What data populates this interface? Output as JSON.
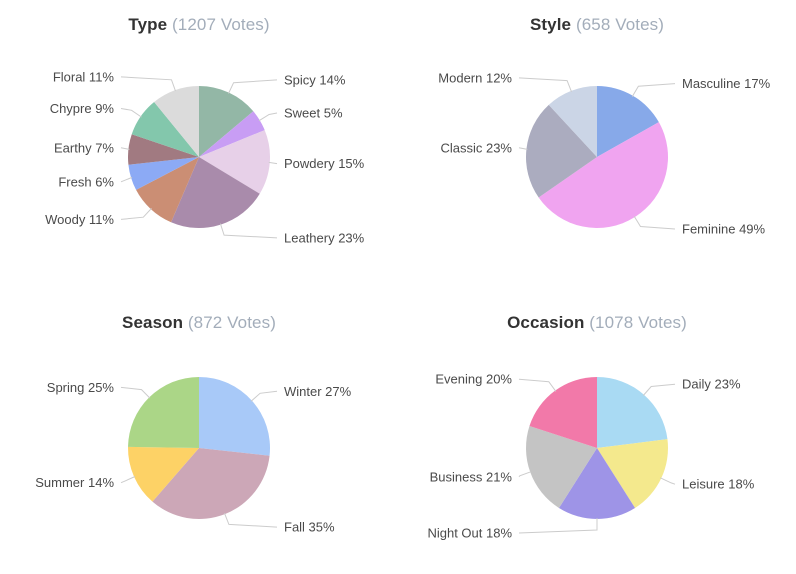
{
  "theme": {
    "background": "#ffffff",
    "title_color": "#333333",
    "votes_color": "#a3adba",
    "label_color": "#4a4a4a",
    "connector_color": "#cccccc"
  },
  "chart_data": [
    {
      "type": "pie",
      "title": "Type",
      "votes_label": "(1207 Votes)",
      "total_votes": 1207,
      "start_angle": "top",
      "direction": "clockwise",
      "legend_position": "none",
      "slices": [
        {
          "label": "Spicy",
          "pct": 14,
          "color": "#93b7a6"
        },
        {
          "label": "Sweet",
          "pct": 5,
          "color": "#c89df4"
        },
        {
          "label": "Powdery",
          "pct": 15,
          "color": "#e7d0e8"
        },
        {
          "label": "Leathery",
          "pct": 23,
          "color": "#a98bab"
        },
        {
          "label": "Woody",
          "pct": 11,
          "color": "#cb8e74"
        },
        {
          "label": "Fresh",
          "pct": 6,
          "color": "#8caaf5"
        },
        {
          "label": "Earthy",
          "pct": 7,
          "color": "#a17a81"
        },
        {
          "label": "Chypre",
          "pct": 9,
          "color": "#83c7ac"
        },
        {
          "label": "Floral",
          "pct": 11,
          "color": "#dbdbdb"
        }
      ]
    },
    {
      "type": "pie",
      "title": "Style",
      "votes_label": "(658 Votes)",
      "total_votes": 658,
      "start_angle": "top",
      "direction": "clockwise",
      "legend_position": "none",
      "slices": [
        {
          "label": "Masculine",
          "pct": 17,
          "color": "#87a9e9"
        },
        {
          "label": "Feminine",
          "pct": 49,
          "color": "#f0a4f0"
        },
        {
          "label": "Classic",
          "pct": 23,
          "color": "#abacbf"
        },
        {
          "label": "Modern",
          "pct": 12,
          "color": "#cbd5e6"
        }
      ]
    },
    {
      "type": "pie",
      "title": "Season",
      "votes_label": "(872 Votes)",
      "total_votes": 872,
      "start_angle": "top",
      "direction": "clockwise",
      "legend_position": "none",
      "slices": [
        {
          "label": "Winter",
          "pct": 27,
          "color": "#a8c9f8"
        },
        {
          "label": "Fall",
          "pct": 35,
          "color": "#cca7b7"
        },
        {
          "label": "Summer",
          "pct": 14,
          "color": "#fdd266"
        },
        {
          "label": "Spring",
          "pct": 25,
          "color": "#abd687"
        }
      ]
    },
    {
      "type": "pie",
      "title": "Occasion",
      "votes_label": "(1078 Votes)",
      "total_votes": 1078,
      "start_angle": "top",
      "direction": "clockwise",
      "legend_position": "none",
      "slices": [
        {
          "label": "Daily",
          "pct": 23,
          "color": "#a9daf3"
        },
        {
          "label": "Leisure",
          "pct": 18,
          "color": "#f4e98d"
        },
        {
          "label": "Night Out",
          "pct": 18,
          "color": "#9e94e7"
        },
        {
          "label": "Business",
          "pct": 21,
          "color": "#c4c4c4"
        },
        {
          "label": "Evening",
          "pct": 20,
          "color": "#f279a9"
        }
      ]
    }
  ]
}
